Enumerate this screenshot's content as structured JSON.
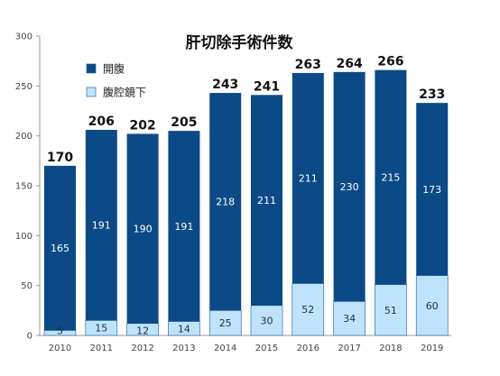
{
  "chart_data": {
    "type": "bar",
    "stacked": true,
    "title": "肝切除手術件数",
    "categories": [
      "2010",
      "2011",
      "2012",
      "2013",
      "2014",
      "2015",
      "2016",
      "2017",
      "2018",
      "2019"
    ],
    "series": [
      {
        "name": "腹腔鏡下",
        "color": "#bfe3fb",
        "values": [
          5,
          15,
          12,
          14,
          25,
          30,
          52,
          34,
          51,
          60
        ]
      },
      {
        "name": "開腹",
        "color": "#0b4a86",
        "values": [
          165,
          191,
          190,
          191,
          218,
          211,
          211,
          230,
          215,
          173
        ]
      }
    ],
    "totals": [
      170,
      206,
      202,
      205,
      243,
      241,
      263,
      264,
      266,
      233
    ],
    "ylim": [
      0,
      300
    ],
    "yticks": [
      0,
      50,
      100,
      150,
      200,
      250,
      300
    ],
    "legend": {
      "position": "top-left",
      "order": [
        "開腹",
        "腹腔鏡下"
      ]
    },
    "grid": false
  }
}
